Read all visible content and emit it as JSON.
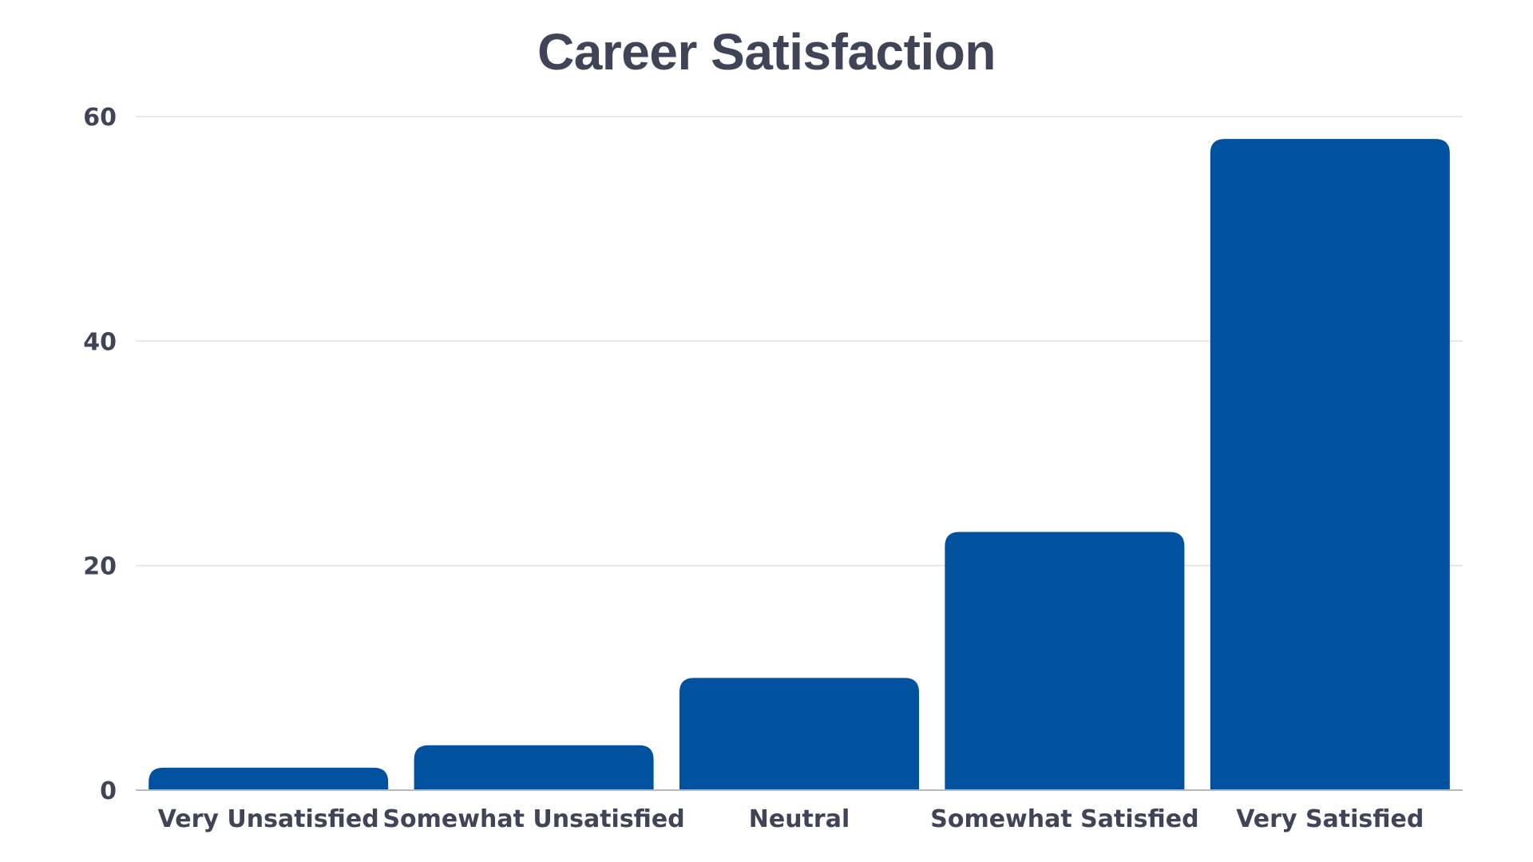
{
  "chart_data": {
    "type": "bar",
    "title": "Career Satisfaction",
    "xlabel": "",
    "ylabel": "",
    "categories": [
      "Very Unsatisfied",
      "Somewhat Unsatisfied",
      "Neutral",
      "Somewhat Satisfied",
      "Very Satisfied"
    ],
    "values": [
      2,
      4,
      10,
      23,
      58
    ],
    "ylim": [
      0,
      60
    ],
    "yticks": [
      "0",
      "20",
      "40",
      "60"
    ],
    "grid": true,
    "legend": "none",
    "colors": {
      "bar": "#00519e",
      "text": "#3f4457",
      "grid": "#e2e2e2"
    }
  }
}
